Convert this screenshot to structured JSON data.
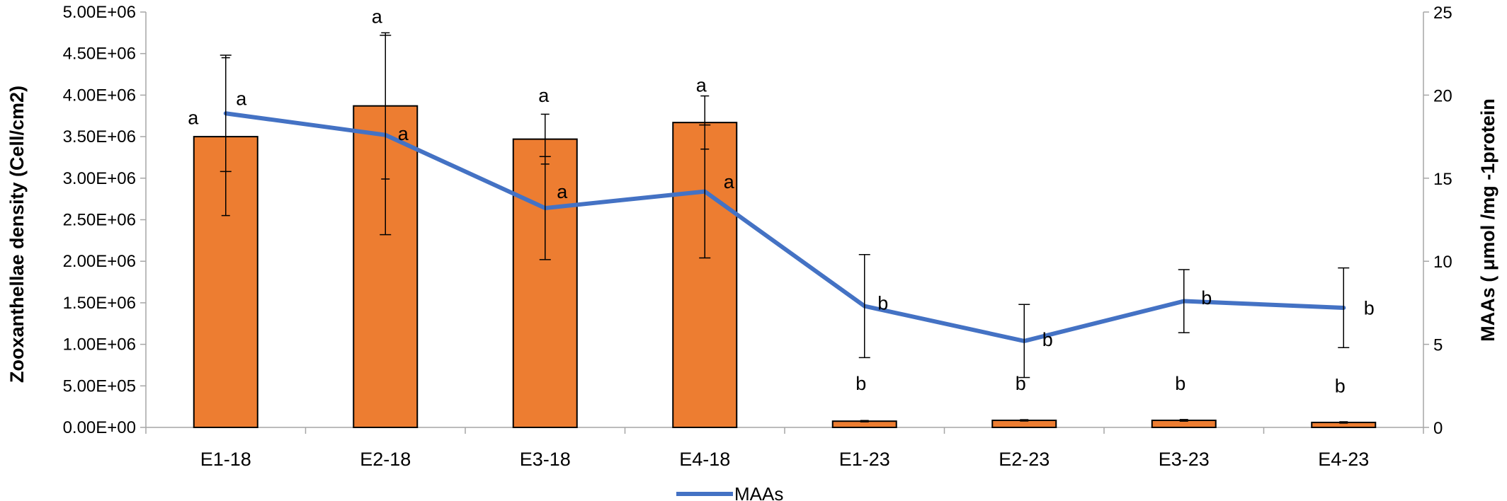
{
  "chart_data": {
    "type": "bar",
    "categories": [
      "E1-18",
      "E2-18",
      "E3-18",
      "E4-18",
      "E1-23",
      "E2-23",
      "E3-23",
      "E4-23"
    ],
    "series": [
      {
        "kind": "bar",
        "axis": "left",
        "color": "#ED7D31",
        "values": [
          3500000,
          3870000,
          3470000,
          3670000,
          75000,
          85000,
          85000,
          60000
        ],
        "error": [
          950000,
          880000,
          300000,
          320000,
          8000,
          8000,
          10000,
          8000
        ],
        "labels": [
          "a",
          "a",
          "a",
          "a",
          "b",
          "b",
          "b",
          "b"
        ]
      },
      {
        "kind": "line",
        "axis": "right",
        "name": "MAAs",
        "color": "#4472C4",
        "values": [
          18.9,
          17.6,
          13.2,
          14.2,
          7.3,
          5.2,
          7.6,
          7.2
        ],
        "error": [
          3.5,
          6.0,
          3.1,
          4.0,
          3.1,
          2.2,
          1.9,
          2.4
        ],
        "labels": [
          "a",
          "a",
          "a",
          "a",
          "b",
          "b",
          "b",
          "b"
        ]
      }
    ],
    "y_left": {
      "label": "Zooxanthellae density (Cell/cm2)",
      "min": 0,
      "max": 5000000,
      "ticks": [
        "0.00E+00",
        "5.00E+05",
        "1.00E+06",
        "1.50E+06",
        "2.00E+06",
        "2.50E+06",
        "3.00E+06",
        "3.50E+06",
        "4.00E+06",
        "4.50E+06",
        "5.00E+06"
      ]
    },
    "y_right": {
      "label": "MAAs ( μmol /mg -1protein",
      "min": 0,
      "max": 25,
      "ticks": [
        "0",
        "5",
        "10",
        "15",
        "20",
        "25"
      ]
    },
    "legend": {
      "position": "bottom",
      "entries": [
        "MAAs"
      ]
    },
    "grid": false
  }
}
